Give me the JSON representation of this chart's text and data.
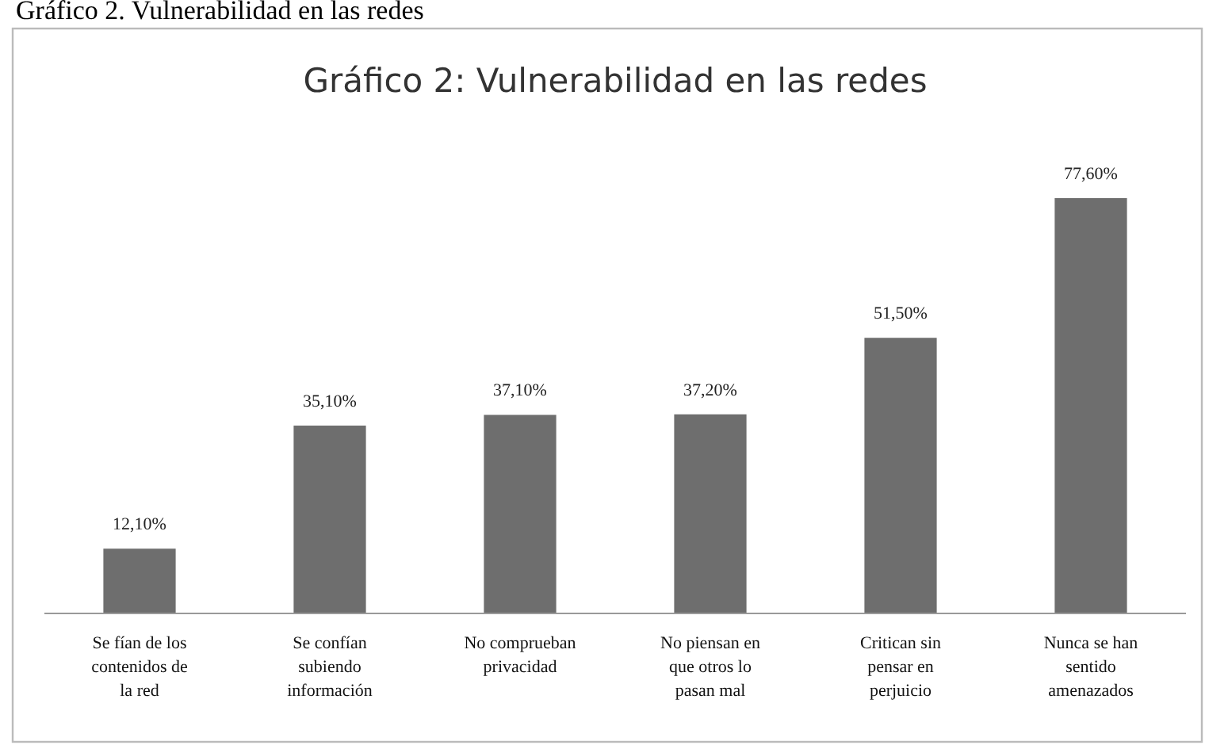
{
  "chart_data": {
    "type": "bar",
    "title": "Gráfico 2: Vulnerabilidad en las redes",
    "annotations": [
      "Gráfico 2. Vulnerabilidad en las redes"
    ],
    "categories": [
      "Se fían de los contenidos de la red",
      "Se confían subiendo información",
      "No comprueban privacidad",
      "No piensan en que otros lo pasan mal",
      "Critican sin pensar en perjuicio",
      "Nunca se han sentido amenazados"
    ],
    "values": [
      12.1,
      35.1,
      37.1,
      37.2,
      51.5,
      77.6
    ],
    "value_labels": [
      "12,10%",
      "35,10%",
      "37,10%",
      "37,20%",
      "51,50%",
      "77,60%"
    ],
    "color": "#6e6e6e"
  }
}
